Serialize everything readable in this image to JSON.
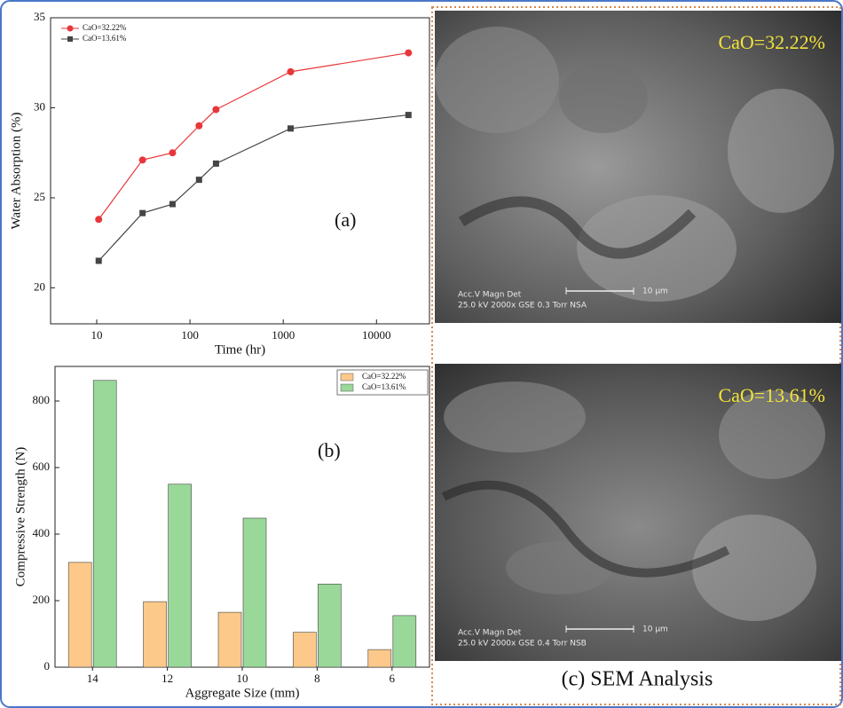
{
  "chart_data": [
    {
      "type": "line",
      "log_x": true,
      "x": [
        10.5,
        31,
        65,
        125,
        190,
        1200,
        22000
      ],
      "series": [
        {
          "name": "CaO=32.22%",
          "color": "#e8373a",
          "marker": "circle",
          "values": [
            23.8,
            27.1,
            27.5,
            29.0,
            29.9,
            32.0,
            33.05
          ]
        },
        {
          "name": "CaO=13.61%",
          "color": "#454545",
          "marker": "square",
          "values": [
            21.5,
            24.15,
            24.65,
            26.0,
            26.9,
            28.85,
            29.6
          ]
        }
      ],
      "xlim": [
        3.2,
        37000
      ],
      "xticks": [
        10,
        100,
        1000,
        10000
      ],
      "ylim": [
        18,
        35
      ],
      "yticks": [
        20,
        25,
        30,
        35
      ],
      "x_label": "Time (hr)",
      "y_label": "Water Absorption (%)",
      "annotation": "(a)",
      "legend": "top-left"
    },
    {
      "type": "bar",
      "categories": [
        "14",
        "12",
        "10",
        "8",
        "6"
      ],
      "series": [
        {
          "name": "CaO=32.22%",
          "color": "#fdc98a",
          "values": [
            315,
            197,
            165,
            105,
            53
          ]
        },
        {
          "name": "CaO=13.61%",
          "color": "#9ad89a",
          "values": [
            862,
            550,
            448,
            250,
            155
          ]
        }
      ],
      "ylim": [
        0,
        904
      ],
      "yticks": [
        0,
        200,
        400,
        600,
        800
      ],
      "x_label": "Aggregate Size (mm)",
      "y_label": "Compressive Strength (N)",
      "annotation": "(b)",
      "legend": "top-right"
    }
  ],
  "sem_panel": {
    "images": [
      {
        "label": "CaO=32.22%",
        "info_top": "Acc.V   Magn     Det",
        "info_bottom": "25.0 kV  2000x   GSE  0.3 Torr NSA",
        "scale": "10 µm"
      },
      {
        "label": "CaO=13.61%",
        "info_top": "Acc.V   Magn     Det",
        "info_bottom": "25.0 kV  2000x   GSE  0.4 Torr NSB",
        "scale": "10 µm"
      }
    ],
    "caption": "(c) SEM Analysis"
  }
}
